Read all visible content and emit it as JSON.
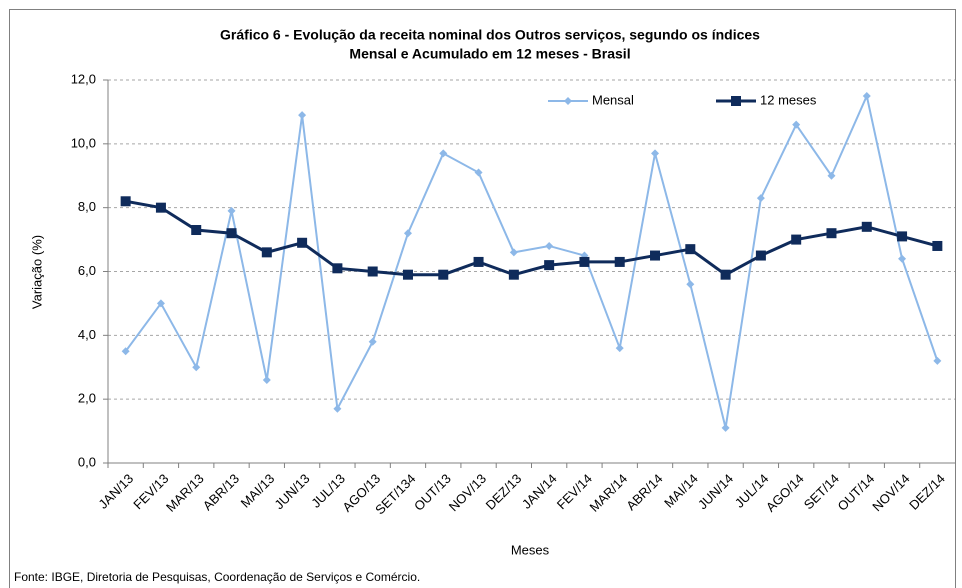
{
  "chart_data": {
    "type": "line",
    "title": "Gráfico 6 - Evolução da receita nominal dos Outros serviços, segundo os índices",
    "subtitle": "Mensal e Acumulado em 12 meses - Brasil",
    "categories": [
      "JAN/13",
      "FEV/13",
      "MAR/13",
      "ABR/13",
      "MAI/13",
      "JUN/13",
      "JUL/13",
      "AGO/13",
      "SET/134",
      "OUT/13",
      "NOV/13",
      "DEZ/13",
      "JAN/14",
      "FEV/14",
      "MAR/14",
      "ABR/14",
      "MAI/14",
      "JUN/14",
      "JUL/14",
      "AGO/14",
      "SET/14",
      "OUT/14",
      "NOV/14",
      "DEZ/14"
    ],
    "series": [
      {
        "name": "Mensal",
        "color": "#8db8e8",
        "marker": "diamond",
        "values": [
          3.5,
          5.0,
          3.0,
          7.9,
          2.6,
          10.9,
          1.7,
          3.8,
          7.2,
          9.7,
          9.1,
          6.6,
          6.8,
          6.5,
          3.6,
          9.7,
          5.6,
          1.1,
          8.3,
          10.6,
          9.0,
          11.5,
          6.4,
          3.2
        ]
      },
      {
        "name": "12 meses",
        "color": "#0f2b5b",
        "marker": "square",
        "values": [
          8.2,
          8.0,
          7.3,
          7.2,
          6.6,
          6.9,
          6.1,
          6.0,
          5.9,
          5.9,
          6.3,
          5.9,
          6.2,
          6.3,
          6.3,
          6.5,
          6.7,
          5.9,
          6.5,
          7.0,
          7.2,
          7.4,
          7.1,
          6.8
        ]
      }
    ],
    "ylim": [
      0,
      12
    ],
    "yticks": [
      {
        "value": 0,
        "label": "0,0"
      },
      {
        "value": 2,
        "label": "2,0"
      },
      {
        "value": 4,
        "label": "4,0"
      },
      {
        "value": 6,
        "label": "6,0"
      },
      {
        "value": 8,
        "label": "8,0"
      },
      {
        "value": 10,
        "label": "10,0"
      },
      {
        "value": 12,
        "label": "12,0"
      }
    ],
    "xlabel": "Meses",
    "ylabel": "Variação (%)",
    "grid": true,
    "source": "Fonte: IBGE, Diretoria de Pesquisas, Coordenação de Serviços e Comércio."
  }
}
